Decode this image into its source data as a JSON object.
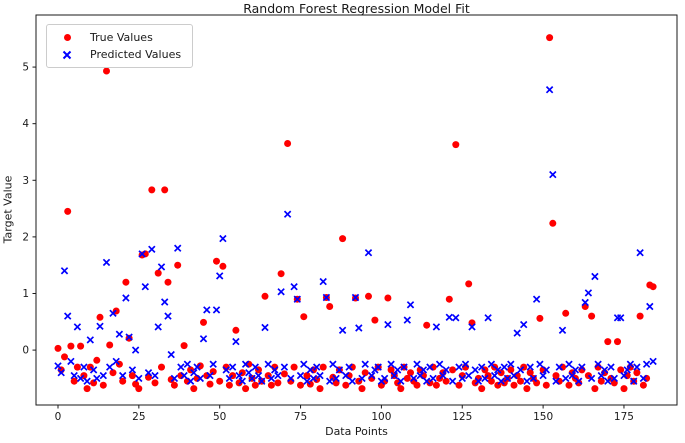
{
  "window": {
    "title": "Random Forest Regression Model Fit"
  },
  "colors": {
    "true_series": "#ff0000",
    "pred_series": "#0000ff",
    "spine": "#1a1a1a",
    "text": "#1a1a1a",
    "legend_border": "#cccccc",
    "background": "#ffffff"
  },
  "chart_data": {
    "type": "scatter",
    "title": "Random Forest Regression Model Fit",
    "xlabel": "Data Points",
    "ylabel": "Target Value",
    "x_description": "sample index 0..184",
    "xlim": [
      -6.8,
      191.4
    ],
    "ylim": [
      -0.97,
      5.92
    ],
    "xticks": [
      0,
      25,
      50,
      75,
      100,
      125,
      150,
      175
    ],
    "yticks": [
      0,
      1,
      2,
      3,
      4,
      5
    ],
    "grid": false,
    "legend_position": "upper-left",
    "series": [
      {
        "name": "True Values",
        "marker": "circle",
        "color": "#ff0000",
        "values": [
          0.03,
          -0.35,
          -0.12,
          2.45,
          0.07,
          -0.55,
          -0.3,
          0.07,
          -0.45,
          -0.68,
          -0.3,
          -0.58,
          -0.18,
          0.58,
          -0.62,
          4.93,
          0.09,
          -0.4,
          0.69,
          -0.25,
          -0.55,
          1.2,
          0.21,
          -0.45,
          -0.6,
          -0.68,
          1.68,
          1.7,
          -0.48,
          2.83,
          -0.58,
          1.36,
          -0.3,
          2.83,
          1.2,
          -0.52,
          -0.62,
          1.5,
          -0.45,
          0.08,
          -0.55,
          -0.35,
          -0.68,
          -0.5,
          -0.28,
          0.49,
          -0.45,
          -0.6,
          -0.38,
          1.57,
          -0.55,
          1.48,
          -0.3,
          -0.62,
          -0.45,
          0.35,
          -0.58,
          -0.4,
          -0.68,
          -0.25,
          -0.5,
          -0.62,
          -0.35,
          -0.55,
          0.95,
          -0.45,
          -0.62,
          -0.3,
          -0.58,
          1.35,
          -0.42,
          3.65,
          -0.55,
          -0.3,
          0.9,
          -0.62,
          0.59,
          -0.45,
          -0.6,
          -0.35,
          -0.52,
          -0.68,
          -0.3,
          0.93,
          0.77,
          -0.48,
          -0.58,
          -0.35,
          1.97,
          -0.62,
          -0.45,
          -0.3,
          0.92,
          -0.55,
          -0.68,
          -0.4,
          0.95,
          -0.5,
          0.53,
          -0.3,
          -0.62,
          -0.55,
          0.92,
          -0.35,
          -0.45,
          -0.58,
          -0.68,
          -0.3,
          -0.5,
          -0.4,
          -0.55,
          -0.62,
          -0.35,
          -0.45,
          0.44,
          -0.58,
          -0.3,
          -0.62,
          -0.5,
          -0.4,
          -0.55,
          0.9,
          -0.35,
          3.63,
          -0.62,
          -0.45,
          -0.3,
          1.17,
          0.48,
          -0.58,
          -0.5,
          -0.68,
          -0.35,
          -0.45,
          -0.55,
          -0.3,
          -0.62,
          -0.4,
          -0.58,
          -0.5,
          -0.35,
          -0.62,
          -0.45,
          -0.55,
          -0.3,
          -0.68,
          -0.4,
          -0.5,
          -0.58,
          0.56,
          -0.35,
          -0.62,
          5.52,
          2.24,
          -0.45,
          -0.55,
          -0.3,
          0.65,
          -0.62,
          -0.4,
          -0.5,
          -0.58,
          -0.35,
          0.77,
          -0.45,
          0.6,
          -0.68,
          -0.3,
          -0.55,
          -0.4,
          0.15,
          -0.5,
          -0.58,
          0.15,
          -0.35,
          -0.68,
          -0.45,
          -0.3,
          -0.55,
          -0.4,
          0.6,
          -0.62,
          -0.5,
          1.15,
          1.12
        ]
      },
      {
        "name": "Predicted Values",
        "marker": "x",
        "color": "#0000ff",
        "values": [
          -0.28,
          -0.4,
          1.4,
          0.6,
          -0.2,
          -0.45,
          0.41,
          -0.5,
          -0.3,
          -0.55,
          0.18,
          -0.35,
          -0.5,
          0.42,
          -0.45,
          1.55,
          -0.3,
          0.65,
          -0.2,
          0.28,
          -0.45,
          0.92,
          0.23,
          -0.35,
          0.0,
          -0.5,
          1.7,
          1.12,
          -0.4,
          1.78,
          -0.45,
          0.41,
          1.47,
          0.85,
          0.6,
          -0.08,
          -0.5,
          1.8,
          -0.3,
          -0.45,
          -0.25,
          -0.55,
          -0.4,
          -0.3,
          -0.5,
          0.2,
          0.71,
          -0.45,
          -0.25,
          0.71,
          1.31,
          1.97,
          -0.35,
          -0.5,
          -0.3,
          0.15,
          -0.45,
          -0.55,
          -0.25,
          -0.4,
          -0.5,
          -0.3,
          -0.45,
          -0.55,
          0.4,
          -0.25,
          -0.5,
          -0.35,
          -0.45,
          1.03,
          -0.3,
          2.4,
          -0.5,
          1.12,
          0.9,
          -0.45,
          -0.25,
          -0.55,
          -0.35,
          -0.5,
          -0.3,
          -0.45,
          1.21,
          0.93,
          -0.55,
          -0.25,
          -0.5,
          -0.35,
          0.35,
          -0.45,
          -0.3,
          -0.55,
          0.93,
          0.39,
          -0.5,
          -0.25,
          1.72,
          -0.45,
          -0.35,
          -0.3,
          -0.55,
          -0.5,
          0.45,
          -0.25,
          -0.45,
          -0.35,
          -0.55,
          -0.3,
          0.53,
          0.8,
          -0.5,
          -0.25,
          -0.45,
          -0.35,
          -0.55,
          -0.3,
          -0.5,
          0.41,
          -0.25,
          -0.45,
          -0.35,
          0.58,
          -0.55,
          0.57,
          -0.3,
          -0.5,
          -0.25,
          -0.45,
          0.41,
          -0.35,
          -0.55,
          -0.3,
          -0.5,
          0.57,
          -0.25,
          -0.45,
          -0.35,
          -0.55,
          -0.3,
          -0.5,
          -0.25,
          -0.45,
          0.3,
          -0.35,
          0.45,
          -0.55,
          -0.3,
          -0.5,
          0.9,
          -0.25,
          -0.45,
          -0.35,
          4.6,
          3.1,
          -0.55,
          -0.3,
          0.35,
          -0.5,
          -0.25,
          -0.45,
          -0.35,
          -0.55,
          -0.3,
          0.84,
          1.01,
          -0.5,
          1.3,
          -0.25,
          -0.45,
          -0.35,
          -0.55,
          -0.3,
          -0.5,
          0.57,
          0.57,
          -0.45,
          -0.35,
          -0.25,
          -0.55,
          -0.3,
          1.72,
          -0.5,
          -0.25,
          0.77,
          -0.2
        ]
      }
    ]
  }
}
